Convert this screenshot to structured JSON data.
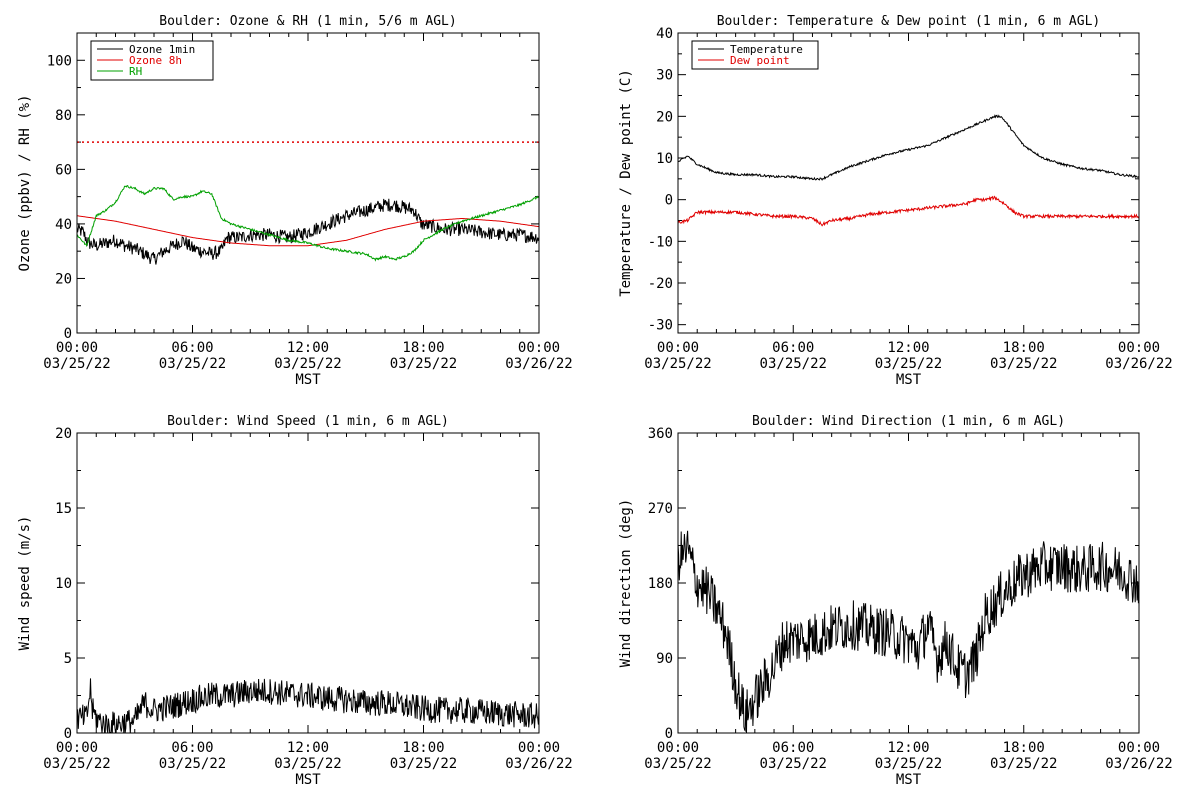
{
  "x_axis": {
    "ticks": [
      {
        "time": "00:00",
        "date": "03/25/22"
      },
      {
        "time": "06:00",
        "date": "03/25/22"
      },
      {
        "time": "12:00",
        "date": "03/25/22"
      },
      {
        "time": "18:00",
        "date": "03/25/22"
      },
      {
        "time": "00:00",
        "date": "03/26/22"
      }
    ],
    "label": "MST",
    "range_hours": [
      0,
      24
    ]
  },
  "colors": {
    "ozone_1min": "#000000",
    "ozone_8h": "#e00000",
    "rh": "#00a000",
    "temperature": "#000000",
    "dew_point": "#e00000",
    "wind": "#000000",
    "threshold": "#e00000"
  },
  "chart_data": [
    {
      "type": "line",
      "title": "Boulder: Ozone & RH (1 min, 5/6 m AGL)",
      "xlabel": "MST",
      "ylabel": "Ozone (ppbv) / RH (%)",
      "xlim": [
        0,
        24
      ],
      "ylim": [
        0,
        110
      ],
      "yticks": [
        0,
        20,
        40,
        60,
        80,
        100
      ],
      "legend_position": "top-left",
      "threshold_line": {
        "y": 70,
        "style": "dotted",
        "color": "#e00000"
      },
      "series": [
        {
          "name": "Ozone 1min",
          "color": "#000000",
          "noise": 2.5,
          "x": [
            0,
            0.3,
            0.6,
            1,
            1.5,
            2,
            2.5,
            3,
            3.5,
            4,
            4.5,
            5,
            5.5,
            6,
            6.5,
            7,
            7.5,
            7.8,
            8.5,
            9,
            10,
            11,
            12,
            13,
            14,
            15,
            16,
            16.5,
            17,
            17.5,
            17.9,
            18.5,
            19,
            20,
            21,
            22,
            23,
            24
          ],
          "y": [
            38,
            37,
            33,
            32,
            33,
            34,
            32,
            31,
            29,
            27,
            30,
            32,
            34,
            31,
            30,
            29,
            30,
            35,
            35,
            36,
            36,
            35,
            37,
            40,
            43,
            45,
            47,
            47,
            46,
            45,
            40,
            39,
            38,
            38,
            37,
            36,
            36,
            35
          ]
        },
        {
          "name": "Ozone 8h",
          "color": "#e00000",
          "noise": 0,
          "x": [
            0,
            2,
            4,
            6,
            8,
            10,
            12,
            14,
            16,
            18,
            20,
            22,
            24
          ],
          "y": [
            43,
            41,
            38,
            35,
            33,
            32,
            32,
            34,
            38,
            41,
            42,
            41,
            39
          ]
        },
        {
          "name": "RH",
          "color": "#00a000",
          "noise": 0.4,
          "x": [
            0,
            0.5,
            1,
            1.5,
            2,
            2.5,
            3,
            3.5,
            4,
            4.5,
            5,
            5.5,
            6,
            6.5,
            7,
            7.5,
            8,
            9,
            10,
            11,
            12,
            13,
            14,
            15,
            15.5,
            16,
            16.5,
            17,
            17.5,
            18,
            19,
            20,
            21,
            22,
            23,
            24
          ],
          "y": [
            36,
            32,
            43,
            45,
            48,
            54,
            53,
            51,
            53,
            53,
            49,
            50,
            50,
            52,
            51,
            42,
            40,
            38,
            36,
            34,
            33,
            31,
            30,
            29,
            27,
            28,
            27,
            28,
            30,
            34,
            38,
            41,
            43,
            45,
            47,
            50
          ]
        }
      ]
    },
    {
      "type": "line",
      "title": "Boulder: Temperature & Dew point (1 min, 6 m AGL)",
      "xlabel": "MST",
      "ylabel": "Temperature / Dew point (C)",
      "xlim": [
        0,
        24
      ],
      "ylim": [
        -32,
        40
      ],
      "yticks": [
        -30,
        -20,
        -10,
        0,
        10,
        20,
        30,
        40
      ],
      "legend_position": "top-left",
      "series": [
        {
          "name": "Temperature",
          "color": "#000000",
          "noise": 0.25,
          "x": [
            0,
            0.5,
            1,
            1.5,
            2,
            3,
            4,
            5,
            6,
            7,
            7.5,
            8,
            9,
            10,
            11,
            12,
            13,
            14,
            15,
            15.5,
            16,
            16.5,
            16.8,
            17,
            17.5,
            18,
            19,
            20,
            21,
            22,
            23,
            24
          ],
          "y": [
            9,
            10.5,
            8.5,
            7.5,
            6.5,
            6,
            6,
            5.5,
            5.5,
            5,
            5,
            6,
            8,
            9.5,
            11,
            12,
            13,
            15,
            17,
            18,
            19,
            20,
            20,
            19,
            16,
            13,
            10,
            8.5,
            7.5,
            7,
            6,
            5.5
          ]
        },
        {
          "name": "Dew point",
          "color": "#e00000",
          "noise": 0.35,
          "x": [
            0,
            0.5,
            1,
            2,
            3,
            4,
            5,
            6,
            7,
            7.5,
            8,
            9,
            10,
            11,
            12,
            13,
            14,
            15,
            15.5,
            16,
            16.5,
            17,
            17.5,
            18,
            19,
            20,
            21,
            22,
            23,
            24
          ],
          "y": [
            -5.5,
            -5,
            -3,
            -3,
            -3,
            -3.5,
            -4,
            -4,
            -4.5,
            -6,
            -5,
            -4.5,
            -3.5,
            -3,
            -2.5,
            -2,
            -1.5,
            -1,
            0,
            0,
            0.5,
            -1,
            -3,
            -4,
            -4,
            -4,
            -4,
            -4,
            -4,
            -4
          ]
        }
      ]
    },
    {
      "type": "line",
      "title": "Boulder: Wind Speed (1 min, 6 m AGL)",
      "xlabel": "MST",
      "ylabel": "Wind speed (m/s)",
      "xlim": [
        0,
        24
      ],
      "ylim": [
        0,
        20
      ],
      "yticks": [
        0,
        5,
        10,
        15,
        20
      ],
      "series": [
        {
          "name": "",
          "color": "#000000",
          "noise": 0.9,
          "x": [
            0,
            0.5,
            0.7,
            0.8,
            1,
            1.5,
            2,
            3,
            3.5,
            4,
            5,
            6,
            7,
            8,
            9,
            10,
            11,
            12,
            13,
            14,
            15,
            16,
            17,
            18,
            19,
            20,
            21,
            22,
            23,
            24
          ],
          "y": [
            1,
            1,
            3,
            1.5,
            1,
            0.5,
            0.6,
            0.8,
            2,
            1.5,
            1.8,
            2.2,
            2.5,
            2.5,
            2.8,
            2.8,
            2.6,
            2.5,
            2.3,
            2.2,
            2,
            2,
            1.8,
            1.6,
            1.5,
            1.5,
            1.4,
            1.3,
            1.2,
            1.1
          ]
        }
      ]
    },
    {
      "type": "line",
      "title": "Boulder: Wind Direction (1 min, 6 m AGL)",
      "xlabel": "MST",
      "ylabel": "Wind direction (deg)",
      "xlim": [
        0,
        24
      ],
      "ylim": [
        0,
        360
      ],
      "yticks": [
        0,
        90,
        180,
        270,
        360
      ],
      "series": [
        {
          "name": "",
          "color": "#000000",
          "noise": 30,
          "x": [
            0,
            0.5,
            1,
            1.5,
            2,
            2.5,
            3,
            3.5,
            4,
            4.5,
            5,
            5.5,
            6,
            7,
            8,
            9,
            10,
            11,
            12,
            12.5,
            13,
            13.5,
            14,
            14.5,
            15,
            15.5,
            16,
            17,
            18,
            19,
            20,
            21,
            22,
            23,
            24
          ],
          "y": [
            210,
            220,
            180,
            170,
            150,
            120,
            60,
            20,
            40,
            60,
            80,
            110,
            112,
            115,
            125,
            130,
            125,
            120,
            110,
            100,
            130,
            90,
            110,
            80,
            70,
            90,
            140,
            170,
            190,
            200,
            200,
            195,
            200,
            195,
            180
          ]
        }
      ]
    }
  ]
}
